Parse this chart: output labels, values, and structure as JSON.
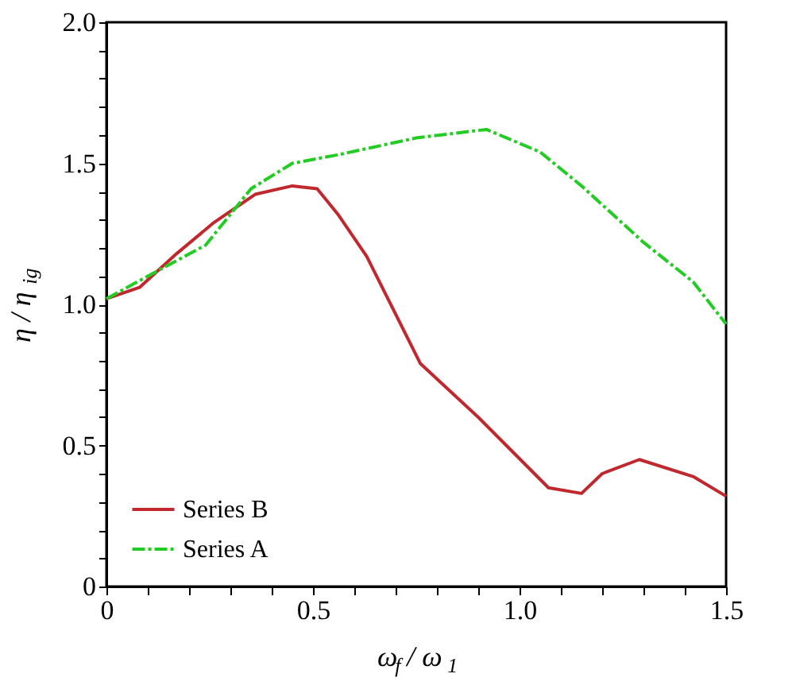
{
  "chart_data": {
    "type": "line",
    "xlabel": "ω$_{f}$ / ω$_{1}$",
    "ylabel": "η / η$_{ig}$",
    "xlim": [
      0,
      1.5
    ],
    "ylim": [
      0,
      2
    ],
    "xticks": [
      0,
      {
        "value": 0.1,
        "label": null
      },
      {
        "value": 0.2,
        "label": null
      },
      {
        "value": 0.3,
        "label": null
      },
      {
        "value": 0.4,
        "label": null
      },
      0.5,
      {
        "value": 0.6,
        "label": null
      },
      {
        "value": 0.7,
        "label": null
      },
      {
        "value": 0.8,
        "label": null
      },
      {
        "value": 0.9,
        "label": null
      },
      {
        "value": 1,
        "label": "1.0"
      },
      {
        "value": 1.1,
        "label": null
      },
      {
        "value": 1.2,
        "label": null
      },
      {
        "value": 1.3,
        "label": null
      },
      {
        "value": 1.4,
        "label": null
      },
      1.5
    ],
    "yticks": [
      0,
      {
        "value": 0.1,
        "label": null
      },
      {
        "value": 0.2,
        "label": null
      },
      {
        "value": 0.3,
        "label": null
      },
      {
        "value": 0.4,
        "label": null
      },
      0.5,
      {
        "value": 0.6,
        "label": null
      },
      {
        "value": 0.7,
        "label": null
      },
      {
        "value": 0.8,
        "label": null
      },
      {
        "value": 0.9,
        "label": null
      },
      {
        "value": 1,
        "label": "1.0"
      },
      {
        "value": 1.1,
        "label": null
      },
      {
        "value": 1.2,
        "label": null
      },
      {
        "value": 1.3,
        "label": null
      },
      {
        "value": 1.4,
        "label": null
      },
      1.5,
      {
        "value": 1.6,
        "label": null
      },
      {
        "value": 1.7,
        "label": null
      },
      {
        "value": 1.8,
        "label": null
      },
      {
        "value": 1.9,
        "label": null
      },
      {
        "value": 2,
        "label": "2.0"
      }
    ],
    "grid": false,
    "legend": "bottom left",
    "marker": "none",
    "series": [
      {
        "name": "Series B",
        "color": "#c0282d",
        "line_style": "solid",
        "x": [
          0,
          0.08,
          0.17,
          0.26,
          0.36,
          0.45,
          0.51,
          0.56,
          0.63,
          0.76,
          0.9,
          1.07,
          1.15,
          1.2,
          1.29,
          1.42,
          1.5
        ],
        "values": [
          1.02,
          1.06,
          1.18,
          1.29,
          1.39,
          1.42,
          1.41,
          1.32,
          1.17,
          0.79,
          0.6,
          0.35,
          0.33,
          0.4,
          0.45,
          0.39,
          0.32
        ]
      },
      {
        "name": "Series A",
        "color": "#22cc22",
        "line_style": "dashed",
        "x": [
          0,
          0.1,
          0.24,
          0.35,
          0.45,
          0.56,
          0.75,
          0.92,
          1.05,
          1.15,
          1.3,
          1.42,
          1.5
        ],
        "values": [
          1.02,
          1.1,
          1.21,
          1.41,
          1.5,
          1.53,
          1.59,
          1.62,
          1.54,
          1.42,
          1.22,
          1.08,
          0.93
        ]
      }
    ]
  }
}
